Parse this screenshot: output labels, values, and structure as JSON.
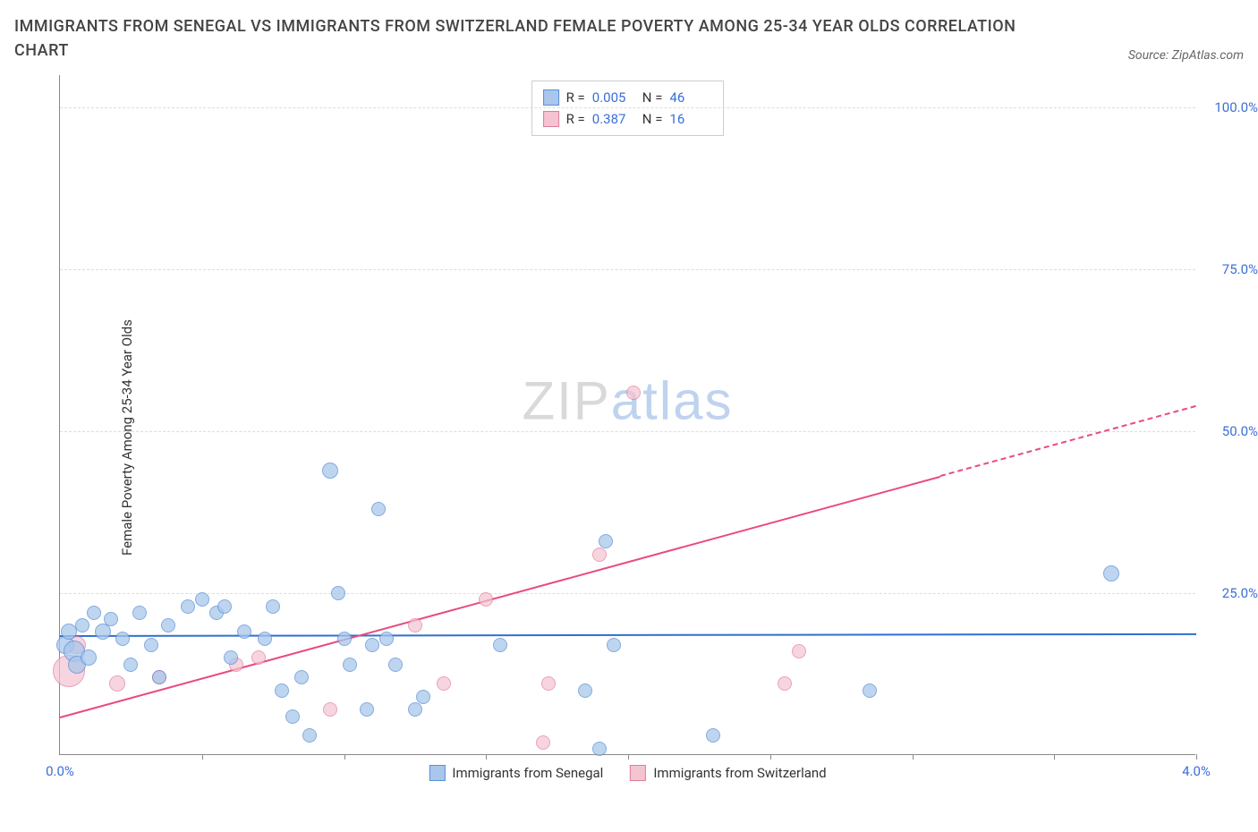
{
  "title": "IMMIGRANTS FROM SENEGAL VS IMMIGRANTS FROM SWITZERLAND FEMALE POVERTY AMONG 25-34 YEAR OLDS CORRELATION CHART",
  "source": "Source: ZipAtlas.com",
  "ylabel": "Female Poverty Among 25-34 Year Olds",
  "watermark_a": "ZIP",
  "watermark_b": "atlas",
  "chart": {
    "type": "scatter",
    "background_color": "#ffffff",
    "grid_color": "#dddddd",
    "axis_color": "#888888",
    "tick_label_color": "#3b6fd6",
    "xlim": [
      0.0,
      4.0
    ],
    "ylim": [
      0.0,
      105.0
    ],
    "yticks": [
      25.0,
      50.0,
      75.0,
      100.0
    ],
    "ytick_labels": [
      "25.0%",
      "50.0%",
      "75.0%",
      "100.0%"
    ],
    "xtick_labels": {
      "min": "0.0%",
      "max": "4.0%"
    },
    "xtick_marks": [
      0.5,
      1.0,
      1.5,
      2.0,
      2.5,
      3.0,
      3.5,
      4.0
    ],
    "series": [
      {
        "name": "Immigrants from Senegal",
        "fill": "#a9c7ec",
        "stroke": "#5a8fd6",
        "opacity": 0.75,
        "R": "0.005",
        "N": "46",
        "trend": {
          "color": "#2f6fd0",
          "x1": 0.0,
          "y1": 18.5,
          "x2": 4.0,
          "y2": 18.8,
          "dash_after_x": null
        },
        "points": [
          {
            "x": 0.02,
            "y": 17,
            "r": 10
          },
          {
            "x": 0.03,
            "y": 19,
            "r": 9
          },
          {
            "x": 0.05,
            "y": 16,
            "r": 12
          },
          {
            "x": 0.08,
            "y": 20,
            "r": 8
          },
          {
            "x": 0.06,
            "y": 14,
            "r": 10
          },
          {
            "x": 0.12,
            "y": 22,
            "r": 8
          },
          {
            "x": 0.15,
            "y": 19,
            "r": 9
          },
          {
            "x": 0.18,
            "y": 21,
            "r": 8
          },
          {
            "x": 0.1,
            "y": 15,
            "r": 9
          },
          {
            "x": 0.22,
            "y": 18,
            "r": 8
          },
          {
            "x": 0.25,
            "y": 14,
            "r": 8
          },
          {
            "x": 0.28,
            "y": 22,
            "r": 8
          },
          {
            "x": 0.32,
            "y": 17,
            "r": 8
          },
          {
            "x": 0.35,
            "y": 12,
            "r": 8
          },
          {
            "x": 0.38,
            "y": 20,
            "r": 8
          },
          {
            "x": 0.45,
            "y": 23,
            "r": 8
          },
          {
            "x": 0.5,
            "y": 24,
            "r": 8
          },
          {
            "x": 0.55,
            "y": 22,
            "r": 8
          },
          {
            "x": 0.58,
            "y": 23,
            "r": 8
          },
          {
            "x": 0.6,
            "y": 15,
            "r": 8
          },
          {
            "x": 0.65,
            "y": 19,
            "r": 8
          },
          {
            "x": 0.72,
            "y": 18,
            "r": 8
          },
          {
            "x": 0.75,
            "y": 23,
            "r": 8
          },
          {
            "x": 0.78,
            "y": 10,
            "r": 8
          },
          {
            "x": 0.82,
            "y": 6,
            "r": 8
          },
          {
            "x": 0.85,
            "y": 12,
            "r": 8
          },
          {
            "x": 0.88,
            "y": 3,
            "r": 8
          },
          {
            "x": 0.95,
            "y": 44,
            "r": 9
          },
          {
            "x": 0.98,
            "y": 25,
            "r": 8
          },
          {
            "x": 1.0,
            "y": 18,
            "r": 8
          },
          {
            "x": 1.02,
            "y": 14,
            "r": 8
          },
          {
            "x": 1.08,
            "y": 7,
            "r": 8
          },
          {
            "x": 1.1,
            "y": 17,
            "r": 8
          },
          {
            "x": 1.12,
            "y": 38,
            "r": 8
          },
          {
            "x": 1.15,
            "y": 18,
            "r": 8
          },
          {
            "x": 1.18,
            "y": 14,
            "r": 8
          },
          {
            "x": 1.25,
            "y": 7,
            "r": 8
          },
          {
            "x": 1.28,
            "y": 9,
            "r": 8
          },
          {
            "x": 1.55,
            "y": 17,
            "r": 8
          },
          {
            "x": 1.85,
            "y": 10,
            "r": 8
          },
          {
            "x": 1.92,
            "y": 33,
            "r": 8
          },
          {
            "x": 1.95,
            "y": 17,
            "r": 8
          },
          {
            "x": 2.3,
            "y": 3,
            "r": 8
          },
          {
            "x": 2.85,
            "y": 10,
            "r": 8
          },
          {
            "x": 3.7,
            "y": 28,
            "r": 9
          },
          {
            "x": 1.9,
            "y": 1,
            "r": 8
          }
        ]
      },
      {
        "name": "Immigrants from Switzerland",
        "fill": "#f5c4d1",
        "stroke": "#e07ba0",
        "opacity": 0.7,
        "R": "0.387",
        "N": "16",
        "trend": {
          "color": "#e94b7a",
          "x1": 0.0,
          "y1": 6.0,
          "x2": 4.0,
          "y2": 54.0,
          "dash_after_x": 3.1
        },
        "points": [
          {
            "x": 0.03,
            "y": 13,
            "r": 18
          },
          {
            "x": 0.06,
            "y": 17,
            "r": 10
          },
          {
            "x": 0.2,
            "y": 11,
            "r": 9
          },
          {
            "x": 0.35,
            "y": 12,
            "r": 8
          },
          {
            "x": 0.62,
            "y": 14,
            "r": 8
          },
          {
            "x": 0.7,
            "y": 15,
            "r": 8
          },
          {
            "x": 0.95,
            "y": 7,
            "r": 8
          },
          {
            "x": 1.25,
            "y": 20,
            "r": 8
          },
          {
            "x": 1.35,
            "y": 11,
            "r": 8
          },
          {
            "x": 1.5,
            "y": 24,
            "r": 8
          },
          {
            "x": 1.7,
            "y": 2,
            "r": 8
          },
          {
            "x": 1.72,
            "y": 11,
            "r": 8
          },
          {
            "x": 1.9,
            "y": 31,
            "r": 8
          },
          {
            "x": 2.02,
            "y": 56,
            "r": 8
          },
          {
            "x": 2.55,
            "y": 11,
            "r": 8
          },
          {
            "x": 2.6,
            "y": 16,
            "r": 8
          }
        ]
      }
    ]
  },
  "legend_top_labels": {
    "R": "R =",
    "N": "N ="
  },
  "legend_bottom": [
    {
      "label": "Immigrants from Senegal",
      "fill": "#a9c7ec",
      "stroke": "#5a8fd6"
    },
    {
      "label": "Immigrants from Switzerland",
      "fill": "#f5c4d1",
      "stroke": "#e07ba0"
    }
  ]
}
